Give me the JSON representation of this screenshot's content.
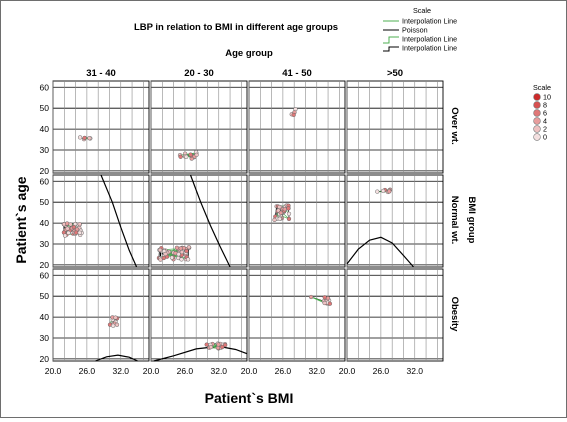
{
  "chart_data": {
    "type": "scatter",
    "title": "LBP in relation to BMI in different age groups",
    "xlabel": "Patient`s BMI",
    "ylabel": "Patient`s age",
    "col_group_label": "Age group",
    "row_group_label": "BMI group",
    "columns": [
      "31 - 40",
      "20 - 30",
      "41 - 50",
      ">50"
    ],
    "rows": [
      "Over wt.",
      "Normal wt.",
      "Obesity"
    ],
    "x_ticks": [
      "20.0",
      "26.0",
      "32.0"
    ],
    "x_tick_values": [
      20,
      26,
      32
    ],
    "y_ticks": [
      "20",
      "30",
      "40",
      "50",
      "60"
    ],
    "y_tick_values": [
      20,
      30,
      40,
      50,
      60
    ],
    "xlim": [
      20,
      37
    ],
    "ylim": [
      19,
      63
    ],
    "grid": true,
    "legend_top": {
      "heading": "Scale",
      "items": [
        {
          "label": "Interpolation Line",
          "style": "green-line"
        },
        {
          "label": "Poisson",
          "style": "black-line"
        },
        {
          "label": "Interpolation Line",
          "style": "green-step"
        },
        {
          "label": "Interpolation Line",
          "style": "black-step"
        }
      ]
    },
    "legend_right": {
      "heading": "Scale",
      "items": [
        {
          "label": "10",
          "color": "#cc2b2b"
        },
        {
          "label": "8",
          "color": "#d65050"
        },
        {
          "label": "6",
          "color": "#df7777"
        },
        {
          "label": "4",
          "color": "#e89d9d"
        },
        {
          "label": "2",
          "color": "#efc1c1"
        },
        {
          "label": "0",
          "color": "#f4e0e0"
        }
      ]
    },
    "panels": [
      {
        "row": 0,
        "col": 0,
        "clusters": [
          {
            "x": 26.0,
            "y": 35.5,
            "spread_x": 1.2,
            "spread_y": 0.6,
            "n": 6
          }
        ],
        "curve": null
      },
      {
        "row": 0,
        "col": 1,
        "clusters": [
          {
            "x": 26.5,
            "y": 27.5,
            "spread_x": 1.8,
            "spread_y": 1.8,
            "n": 14
          }
        ],
        "curve": null
      },
      {
        "row": 0,
        "col": 2,
        "clusters": [
          {
            "x": 28.0,
            "y": 48.0,
            "spread_x": 0.5,
            "spread_y": 2.0,
            "n": 4
          }
        ],
        "curve": null
      },
      {
        "row": 0,
        "col": 3,
        "clusters": [],
        "curve": null
      },
      {
        "row": 1,
        "col": 0,
        "clusters": [
          {
            "x": 23.5,
            "y": 37.0,
            "spread_x": 1.6,
            "spread_y": 3.0,
            "n": 42
          }
        ],
        "curve": [
          [
            28.5,
            63
          ],
          [
            30.5,
            50
          ],
          [
            32.0,
            38
          ],
          [
            33.5,
            27
          ],
          [
            34.8,
            19
          ]
        ]
      },
      {
        "row": 1,
        "col": 1,
        "clusters": [
          {
            "x": 24.0,
            "y": 25.5,
            "spread_x": 2.8,
            "spread_y": 3.0,
            "n": 46
          }
        ],
        "curve": [
          [
            27.0,
            63
          ],
          [
            28.8,
            50
          ],
          [
            30.5,
            39
          ],
          [
            32.2,
            29
          ],
          [
            34.0,
            19
          ]
        ]
      },
      {
        "row": 1,
        "col": 2,
        "clusters": [
          {
            "x": 25.8,
            "y": 45.0,
            "spread_x": 1.3,
            "spread_y": 3.5,
            "n": 32
          }
        ],
        "curve": null
      },
      {
        "row": 1,
        "col": 3,
        "clusters": [
          {
            "x": 26.3,
            "y": 55.5,
            "spread_x": 1.6,
            "spread_y": 0.8,
            "n": 7
          }
        ],
        "curve": [
          [
            20.0,
            20.5
          ],
          [
            22.0,
            27.5
          ],
          [
            24.0,
            31.8
          ],
          [
            26.0,
            33.2
          ],
          [
            28.0,
            30.5
          ],
          [
            30.0,
            24.5
          ],
          [
            31.8,
            19
          ]
        ]
      },
      {
        "row": 2,
        "col": 0,
        "clusters": [
          {
            "x": 30.8,
            "y": 38.0,
            "spread_x": 0.7,
            "spread_y": 2.2,
            "n": 10
          }
        ],
        "curve": [
          [
            27.5,
            19
          ],
          [
            29.5,
            21.0
          ],
          [
            31.5,
            21.8
          ],
          [
            33.5,
            20.8
          ],
          [
            35.0,
            19
          ]
        ]
      },
      {
        "row": 2,
        "col": 1,
        "clusters": [
          {
            "x": 31.5,
            "y": 26.5,
            "spread_x": 1.8,
            "spread_y": 1.5,
            "n": 16
          }
        ],
        "curve": [
          [
            20.5,
            19
          ],
          [
            24.0,
            21.5
          ],
          [
            28.0,
            24.8
          ],
          [
            32.0,
            26.0
          ],
          [
            35.0,
            24.5
          ],
          [
            37.0,
            22.5
          ]
        ]
      },
      {
        "row": 2,
        "col": 2,
        "clusters": [
          {
            "x": 32.5,
            "y": 48.0,
            "spread_x": 2.0,
            "spread_y": 1.8,
            "n": 12
          }
        ],
        "curve": null
      },
      {
        "row": 2,
        "col": 3,
        "clusters": [],
        "curve": null
      }
    ]
  }
}
